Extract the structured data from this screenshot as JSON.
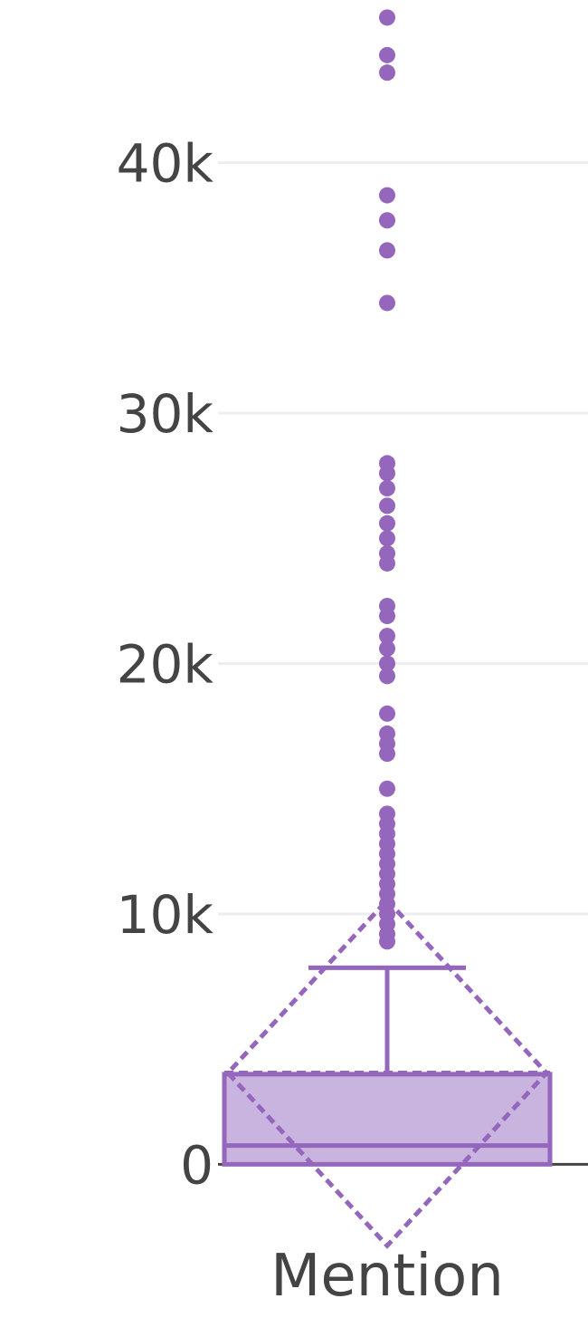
{
  "chart_data": {
    "type": "box",
    "categories": [
      "Mention"
    ],
    "yaxis": {
      "ylim": [
        -2700,
        46500
      ],
      "ticks": [
        0,
        10000,
        20000,
        30000,
        40000
      ],
      "tick_labels": [
        "0",
        "10k",
        "20k",
        "30k",
        "40k"
      ],
      "grid": true
    },
    "box": {
      "category": "Mention",
      "q1": 0,
      "median": 750,
      "q3": 3600,
      "lower_fence": 0,
      "upper_fence": 7850,
      "mean": 3650,
      "sd": 6900,
      "outliers": [
        45800,
        44300,
        43600,
        38700,
        37700,
        36500,
        34400,
        28000,
        27600,
        27000,
        26300,
        25600,
        25000,
        24400,
        24000,
        22300,
        21900,
        21100,
        20600,
        20000,
        19500,
        18000,
        17200,
        16800,
        16400,
        15000,
        14000,
        13600,
        13200,
        12800,
        12400,
        12000,
        11600,
        11200,
        10800,
        10400,
        10000,
        9600,
        9200,
        8900
      ]
    },
    "colors": {
      "box_fill": "#c9b3df",
      "box_line": "#9467bd",
      "grid": "#eeeeee",
      "zeroline": "#444444",
      "text": "#444444"
    }
  }
}
